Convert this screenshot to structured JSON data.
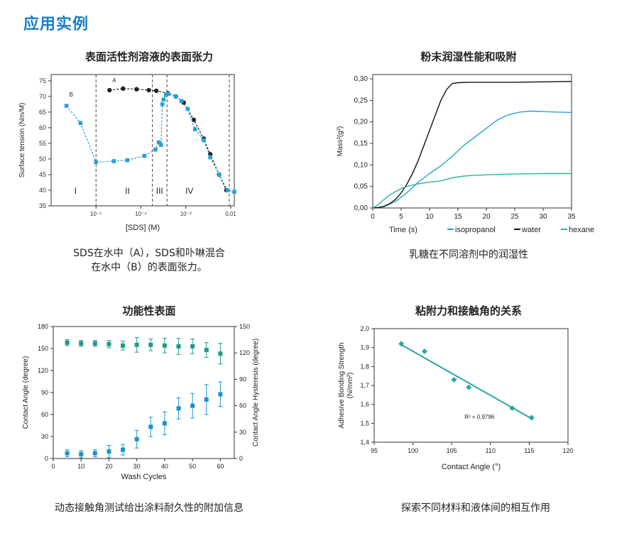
{
  "page": {
    "heading": "应用实例"
  },
  "panels": [
    {
      "title": "表面活性剂溶液的表面张力",
      "caption_lines": [
        "SDS在水中（A），SDS和卟啉混合",
        "在水中（B）的表面张力。"
      ]
    },
    {
      "title": "粉末润湿性能和吸附",
      "caption_lines": [
        "乳糖在不同溶剂中的润湿性"
      ]
    },
    {
      "title": "功能性表面",
      "caption_lines": [
        "动态接触角测试给出涂料耐久性的附加信息"
      ]
    },
    {
      "title": "粘附力和接触角的关系",
      "caption_lines": [
        "探索不同材料和液体间的相互作用"
      ]
    }
  ],
  "chart_data": [
    {
      "type": "line",
      "xlabel": "[SDS] (M)",
      "ylabel": "Surface tension (Nm/M)",
      "xscale": "log",
      "xlim": [
        1e-06,
        0.012
      ],
      "ylim": [
        35,
        77
      ],
      "xticks": [
        {
          "v": 1e-05,
          "label": "10⁻⁵"
        },
        {
          "v": 0.0001,
          "label": "10⁻⁴"
        },
        {
          "v": 0.001,
          "label": "10⁻³"
        },
        {
          "v": 0.01,
          "label": "0,01"
        }
      ],
      "yticks": [
        35,
        40,
        45,
        50,
        55,
        60,
        65,
        70,
        75
      ],
      "vlines": [
        1e-05,
        0.00018,
        0.00038,
        0.0093
      ],
      "regions": [
        {
          "label": "I",
          "x": 3.5e-06,
          "y": 40
        },
        {
          "label": "II",
          "x": 5e-05,
          "y": 40
        },
        {
          "label": "III",
          "x": 0.00026,
          "y": 40
        },
        {
          "label": "IV",
          "x": 0.0012,
          "y": 40
        }
      ],
      "series": [
        {
          "name": "A",
          "color": "#222222",
          "marker": "circle",
          "x": [
            2e-05,
            4e-05,
            8e-05,
            0.00015,
            0.00022,
            0.0004,
            0.0006,
            0.0009,
            0.0015,
            0.0025,
            0.0035,
            0.0055,
            0.008
          ],
          "y": [
            72,
            72.5,
            72.3,
            72,
            71.8,
            71,
            70,
            68,
            62.5,
            56.5,
            51.5,
            45,
            40
          ]
        },
        {
          "name": "B",
          "color": "#2ba0d8",
          "marker": "square",
          "x": [
            2.2e-06,
            4.5e-06,
            1e-05,
            2.5e-05,
            5e-05,
            0.00012,
            0.00021,
            0.00025,
            0.00028,
            0.0003,
            0.00032,
            0.00036,
            0.0004,
            0.0006,
            0.0008,
            0.0011,
            0.0016,
            0.0025,
            0.0035,
            0.0055,
            0.0085,
            0.012
          ],
          "y": [
            67,
            61.5,
            49,
            49.3,
            49.6,
            51,
            53,
            55.3,
            54.5,
            67.5,
            69,
            70.5,
            70.8,
            70,
            68.5,
            66,
            59.5,
            56,
            50.5,
            45,
            40,
            39.5
          ]
        }
      ],
      "point_labels": [
        {
          "text": "A",
          "x": 2e-05,
          "y": 74.5
        },
        {
          "text": "B",
          "x": 2.2e-06,
          "y": 70
        }
      ]
    },
    {
      "type": "line",
      "xlabel": "Time (s)",
      "ylabel": "Mass²(g²)",
      "xlim": [
        0,
        35
      ],
      "ylim": [
        0,
        0.31
      ],
      "xticks": [
        0,
        5,
        10,
        15,
        20,
        25,
        30,
        35
      ],
      "yticks": [
        {
          "v": 0,
          "label": "0,00"
        },
        {
          "v": 0.05,
          "label": "0,05"
        },
        {
          "v": 0.1,
          "label": "0,10"
        },
        {
          "v": 0.15,
          "label": "0,15"
        },
        {
          "v": 0.2,
          "label": "0,20"
        },
        {
          "v": 0.25,
          "label": "0,25"
        },
        {
          "v": 0.3,
          "label": "0,30"
        }
      ],
      "series": [
        {
          "name": "isopropanol",
          "color": "#2ba0d8",
          "x": [
            0,
            2,
            4,
            6,
            8,
            10,
            12,
            14,
            16,
            18,
            20,
            22,
            24,
            26,
            28,
            30,
            32,
            35
          ],
          "y": [
            0,
            0.003,
            0.015,
            0.035,
            0.06,
            0.08,
            0.098,
            0.12,
            0.145,
            0.165,
            0.185,
            0.205,
            0.217,
            0.223,
            0.225,
            0.224,
            0.223,
            0.222
          ]
        },
        {
          "name": "water",
          "color": "#111111",
          "x": [
            0,
            1,
            2,
            3,
            4,
            5,
            6,
            7,
            8,
            9,
            10,
            11,
            12,
            13,
            14,
            15,
            17,
            20,
            25,
            30,
            35
          ],
          "y": [
            0,
            0.001,
            0.004,
            0.01,
            0.02,
            0.035,
            0.055,
            0.08,
            0.11,
            0.145,
            0.18,
            0.215,
            0.25,
            0.275,
            0.289,
            0.291,
            0.292,
            0.292,
            0.292,
            0.293,
            0.294
          ]
        },
        {
          "name": "hexane",
          "color": "#2bb39a",
          "x": [
            0,
            1,
            2,
            3,
            4,
            5,
            6,
            8,
            10,
            12,
            14,
            16,
            18,
            20,
            25,
            30,
            35
          ],
          "y": [
            0,
            0.008,
            0.02,
            0.03,
            0.038,
            0.045,
            0.05,
            0.056,
            0.06,
            0.063,
            0.07,
            0.074,
            0.076,
            0.077,
            0.079,
            0.08,
            0.08
          ]
        }
      ]
    },
    {
      "type": "scatter",
      "xlabel": "Wash Cycles",
      "ylabel": "Contact Angle (degree)",
      "y2label": "Contact Angle Hysteresis (degree)",
      "xlim": [
        0,
        65
      ],
      "ylim": [
        0,
        180
      ],
      "y2lim": [
        0,
        150
      ],
      "xticks": [
        0,
        10,
        20,
        30,
        40,
        50,
        60
      ],
      "yticks": [
        0,
        30,
        60,
        90,
        120,
        150,
        180
      ],
      "y2ticks": [
        0,
        30,
        60,
        90,
        120,
        150
      ],
      "series": [
        {
          "name": "Contact Angle",
          "color": "#1f9a8a",
          "axis": "left",
          "x": [
            5,
            10,
            15,
            20,
            25,
            30,
            35,
            40,
            45,
            50,
            55,
            60
          ],
          "y": [
            158,
            157,
            157,
            156,
            154,
            155,
            155,
            154,
            153,
            153,
            148,
            143
          ],
          "err": [
            4,
            4,
            4,
            5,
            6,
            10,
            8,
            10,
            11,
            10,
            10,
            14
          ]
        },
        {
          "name": "Contact Angle Hysteresis",
          "color": "#1e90d0",
          "axis": "right",
          "x": [
            5,
            10,
            15,
            20,
            25,
            30,
            35,
            40,
            45,
            50,
            55,
            60
          ],
          "y": [
            6,
            5,
            6,
            8,
            10,
            22,
            36,
            40,
            57,
            60,
            67,
            73
          ],
          "err": [
            4,
            4,
            4,
            7,
            6,
            10,
            11,
            13,
            12,
            14,
            17,
            14
          ]
        }
      ]
    },
    {
      "type": "scatter",
      "xlabel": "Contact Angle (°)",
      "ylabel": "Adhesive Bonding Strength (N/mm²)",
      "xlim": [
        95,
        120
      ],
      "ylim": [
        1.4,
        2.0
      ],
      "xticks": [
        95,
        100,
        105,
        110,
        115,
        120
      ],
      "yticks": [
        {
          "v": 1.4,
          "label": "1,4"
        },
        {
          "v": 1.5,
          "label": "1,5"
        },
        {
          "v": 1.6,
          "label": "1,6"
        },
        {
          "v": 1.7,
          "label": "1,7"
        },
        {
          "v": 1.8,
          "label": "1,8"
        },
        {
          "v": 1.9,
          "label": "1,9"
        },
        {
          "v": 2.0,
          "label": "2,0"
        }
      ],
      "series": [
        {
          "name": "",
          "color": "#2ba6a0",
          "x": [
            98.5,
            101.5,
            105.3,
            107.2,
            112.8,
            115.3
          ],
          "y": [
            1.92,
            1.88,
            1.73,
            1.69,
            1.58,
            1.53
          ]
        }
      ],
      "fit": {
        "x": [
          98.5,
          115.5
        ],
        "y": [
          1.915,
          1.52
        ]
      },
      "annotation": {
        "text": "R² = 0,9796",
        "x": 110.5,
        "y": 1.535
      }
    }
  ]
}
